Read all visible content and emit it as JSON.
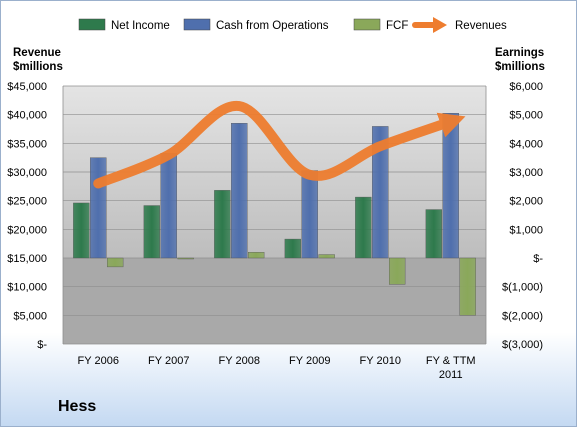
{
  "company": "Hess",
  "chart_data": {
    "type": "bar",
    "categories": [
      "FY 2006",
      "FY 2007",
      "FY 2008",
      "FY 2009",
      "FY 2010",
      "FY & TTM 2011"
    ],
    "category_lines": [
      [
        "FY 2006"
      ],
      [
        "FY 2007"
      ],
      [
        "FY 2008"
      ],
      [
        "FY 2009"
      ],
      [
        "FY 2010"
      ],
      [
        "FY & TTM",
        "2011"
      ]
    ],
    "left_axis": {
      "title_lines": [
        "Revenue",
        "$millions"
      ],
      "range": [
        0,
        45000
      ],
      "ticks": [
        0,
        5000,
        10000,
        15000,
        20000,
        25000,
        30000,
        35000,
        40000,
        45000
      ],
      "tick_labels": [
        "$-",
        "$5,000",
        "$10,000",
        "$15,000",
        "$20,000",
        "$25,000",
        "$30,000",
        "$35,000",
        "$40,000",
        "$45,000"
      ]
    },
    "right_axis": {
      "title_lines": [
        "Earnings",
        "$millions"
      ],
      "range": [
        -3000,
        6000
      ],
      "ticks": [
        -3000,
        -2000,
        -1000,
        0,
        1000,
        2000,
        3000,
        4000,
        5000,
        6000
      ],
      "tick_labels": [
        "$(3,000)",
        "$(2,000)",
        "$(1,000)",
        "$-",
        "$1,000",
        "$2,000",
        "$3,000",
        "$4,000",
        "$5,000",
        "$6,000"
      ]
    },
    "series": [
      {
        "name": "Net Income",
        "type": "bar",
        "axis": "right",
        "color": "#2e7a4c",
        "values": [
          1920,
          1830,
          2360,
          660,
          2125,
          1690
        ]
      },
      {
        "name": "Cash from Operations",
        "type": "bar",
        "axis": "right",
        "color": "#4f6fad",
        "values": [
          3500,
          3650,
          4700,
          3050,
          4590,
          5050
        ]
      },
      {
        "name": "FCF",
        "type": "bar",
        "axis": "right",
        "color": "#8aa85a",
        "values": [
          -310,
          -30,
          200,
          120,
          -920,
          -2000
        ]
      },
      {
        "name": "Revenues",
        "type": "line",
        "axis": "left",
        "color": "#ee7d2f",
        "values": [
          28000,
          33000,
          41500,
          29500,
          34500,
          38800
        ]
      }
    ],
    "grid": true,
    "legend_position": "top"
  }
}
